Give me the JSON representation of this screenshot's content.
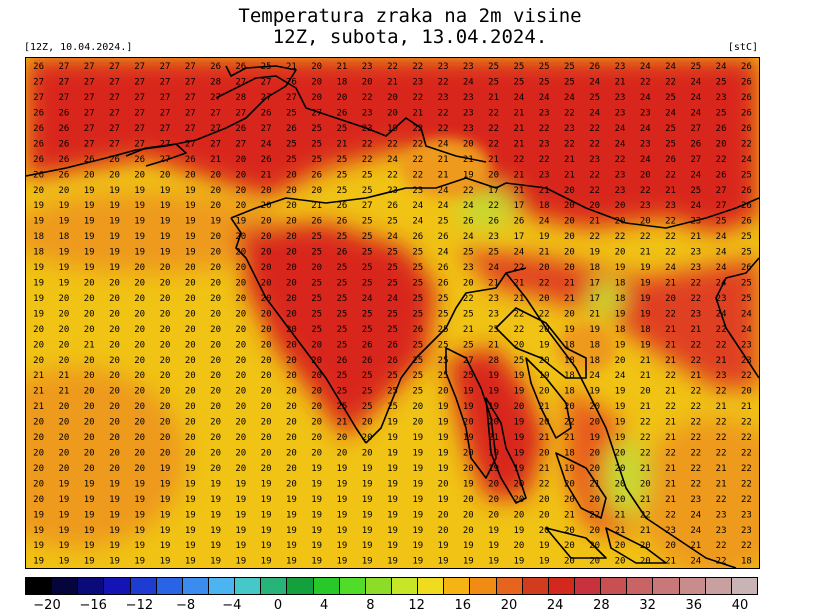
{
  "header": {
    "title_line1": "Temperatura zraka na 2m visine",
    "title_line2": "12Z, subota, 13.04.2024.",
    "init_label": "[12Z, 10.04.2024.]",
    "unit_label": "[stC]"
  },
  "colors": {
    "land_hot": "#d9261c",
    "mid_hot": "#e85a1f",
    "warm": "#ee9a1e",
    "sea": "#f0c315",
    "cool": "#c8d830",
    "coastline": "#000000"
  },
  "legend": {
    "swatches": [
      "#000000",
      "#05053c",
      "#0a0a78",
      "#1414b4",
      "#1e3cd2",
      "#2a64e6",
      "#3c8cf0",
      "#4cb4f0",
      "#46c8c8",
      "#28b478",
      "#14a03c",
      "#28c828",
      "#50dc28",
      "#8cdc28",
      "#c8e628",
      "#f0dc1e",
      "#f5b414",
      "#f08c14",
      "#e6641e",
      "#d23c1e",
      "#d2281e",
      "#c8323c",
      "#c85050",
      "#c86464",
      "#c87878",
      "#c88c8c",
      "#c8a0a0",
      "#c8b4b4"
    ],
    "tick_labels": [
      "−20",
      "−16",
      "−12",
      "−8",
      "−4",
      "0",
      "4",
      "8",
      "12",
      "16",
      "20",
      "24",
      "28",
      "32",
      "36",
      "40"
    ]
  },
  "map_values": {
    "rows": [
      "26 27 27 27 27 27 27 26 26 25 21 20 21 23 22 22 23 23 25 25 25 25 26 23 24 24 25 24 26",
      "27 27 27 27 27 27 27 28 27 27 26 20 18 20 21 23 22 24 25 25 25 25 24 21 22 22 24 25 26",
      "27 27 27 27 27 27 27 27 28 27 27 20 20 22 20 22 23 23 21 24 24 24 25 23 24 25 24 23 26",
      "26 26 27 27 27 27 27 27 27 26 25 27 26 23 20 21 22 23 22 21 23 22 24 23 23 24 24 25 26",
      "26 26 27 27 27 27 27 27 26 27 26 25 25 23 19 22 22 23 22 21 22 23 22 24 24 25 27 26 26",
      "26 26 27 27 27 27 27 27 27 24 25 25 21 22 22 22 24 20 22 21 23 22 22 24 23 25 26 20 22",
      "26 26 26 26 26 27 26 21 20 26 25 25 25 22 24 22 21 21 21 22 22 21 23 22 24 26 27 22 24",
      "26 26 20 20 20 20 20 20 20 21 20 26 25 25 22 22 21 19 20 21 23 21 22 23 20 22 24 26 25",
      "20 20 19 19 19 19 19 20 20 20 20 20 25 25 23 23 24 22 17 21 21 20 22 23 22 21 25 27 26",
      "19 19 19 19 19 19 19 20 20 20 20 21 26 27 26 24 24 24 22 17 18 20 20 20 23 23 24 27 26",
      "19 19 19 19 19 19 19 19 19 20 20 26 26 25 25 24 25 26 26 26 24 20 21 20 20 22 23 25 26",
      "18 18 19 19 19 19 19 20 20 20 20 25 25 25 24 26 26 24 23 17 19 20 22 22 22 22 21 24 25",
      "18 19 19 19 19 19 19 20 20 20 20 25 26 25 25 25 24 25 25 24 21 20 19 20 21 22 23 24 25",
      "19 19 19 19 20 20 20 20 20 20 20 20 25 25 25 25 26 23 24 22 20 20 18 19 19 24 23 24 26",
      "19 19 20 20 20 20 20 20 20 20 20 25 25 25 25 25 26 20 21 21 22 21 17 18 19 21 22 24 25",
      "19 20 20 20 20 20 20 20 20 20 20 25 25 24 24 25 25 22 23 21 20 21 17 18 19 20 22 23 25",
      "19 20 20 20 20 20 20 20 20 20 20 25 25 25 25 25 25 25 23 22 22 20 21 19 19 22 23 24 24",
      "20 20 20 20 20 20 20 20 20 20 20 25 25 25 25 26 25 21 25 22 20 19 19 18 18 21 21 22 24",
      "20 20 21 20 20 20 20 20 20 20 20 20 25 26 26 25 25 25 21 20 19 18 18 19 19 21 22 22 23",
      "20 20 20 20 20 20 20 20 20 20 20 20 26 26 26 25 25 27 28 25 20 18 18 20 21 21 22 21 23",
      "21 21 20 20 20 20 20 20 20 20 20 20 25 25 25 25 25 25 19 19 19 18 24 24 21 22 21 23 22",
      "21 21 20 20 20 20 20 20 20 20 20 20 25 25 25 25 20 19 19 19 20 18 19 19 20 21 22 22 20",
      "21 20 20 20 20 20 20 20 20 20 20 20 25 25 25 20 19 19 19 20 21 20 20 19 21 22 22 21 21",
      "20 20 20 20 20 20 20 20 20 20 20 20 21 20 19 20 19 20 20 19 20 22 20 19 22 21 22 22 22",
      "20 20 20 20 20 20 20 20 20 20 20 20 20 20 19 19 19 19 21 19 21 21 19 19 22 21 22 22 22",
      "20 20 20 20 20 20 20 20 20 20 20 20 20 20 19 19 19 20 19 19 20 18 20 20 22 22 22 22 22",
      "20 20 20 20 20 19 19 20 20 20 20 19 19 19 19 19 19 20 19 19 21 19 20 20 21 21 22 21 22",
      "20 19 19 19 19 19 19 19 19 19 20 19 19 19 19 19 20 19 20 20 22 20 21 20 20 21 22 21 22",
      "20 19 19 19 19 19 19 19 19 19 19 19 19 19 19 19 19 20 20 20 20 20 20 20 21 21 23 22 22",
      "19 19 19 19 19 19 19 19 19 19 19 19 19 19 19 19 20 20 20 20 20 21 22 21 22 22 24 23 23",
      "19 19 19 19 19 19 19 19 19 19 19 19 19 19 19 19 20 20 19 19 20 20 20 21 21 23 24 23 23",
      "19 19 19 19 19 19 19 19 19 19 19 19 19 19 19 19 19 19 19 20 19 20 20 20 20 20 21 22 22",
      "19 19 19 19 19 19 19 19 19 19 19 19 19 19 19 19 19 19 19 19 19 20 20 20 20 21 24 22 18"
    ]
  }
}
